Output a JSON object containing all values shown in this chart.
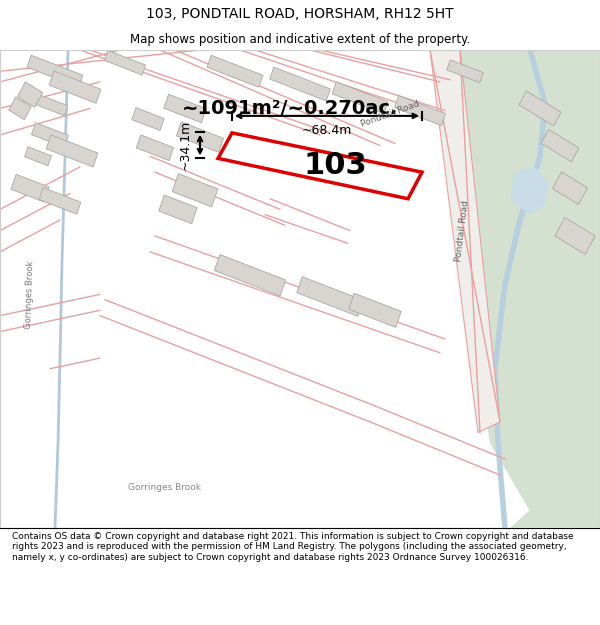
{
  "title": "103, PONDTAIL ROAD, HORSHAM, RH12 5HT",
  "subtitle": "Map shows position and indicative extent of the property.",
  "footer": "Contains OS data © Crown copyright and database right 2021. This information is subject to Crown copyright and database rights 2023 and is reproduced with the permission of HM Land Registry. The polygons (including the associated geometry, namely x, y co-ordinates) are subject to Crown copyright and database rights 2023 Ordnance Survey 100026316.",
  "area_label": "~1091m²/~0.270ac.",
  "width_label": "~68.4m",
  "height_label": "~34.1m",
  "plot_number": "103",
  "map_bg": "#f5f3f0",
  "road_color": "#e8a0a0",
  "building_color": "#d8d4d0",
  "plot_outline_color": "#dd0000",
  "plot_fill": "#ffffff",
  "green_area": "#d4e0d0",
  "water_color": "#c8dce8",
  "stream_color": "#b8cfe0",
  "title_fontsize": 10,
  "subtitle_fontsize": 8.5,
  "footer_fontsize": 6.5
}
